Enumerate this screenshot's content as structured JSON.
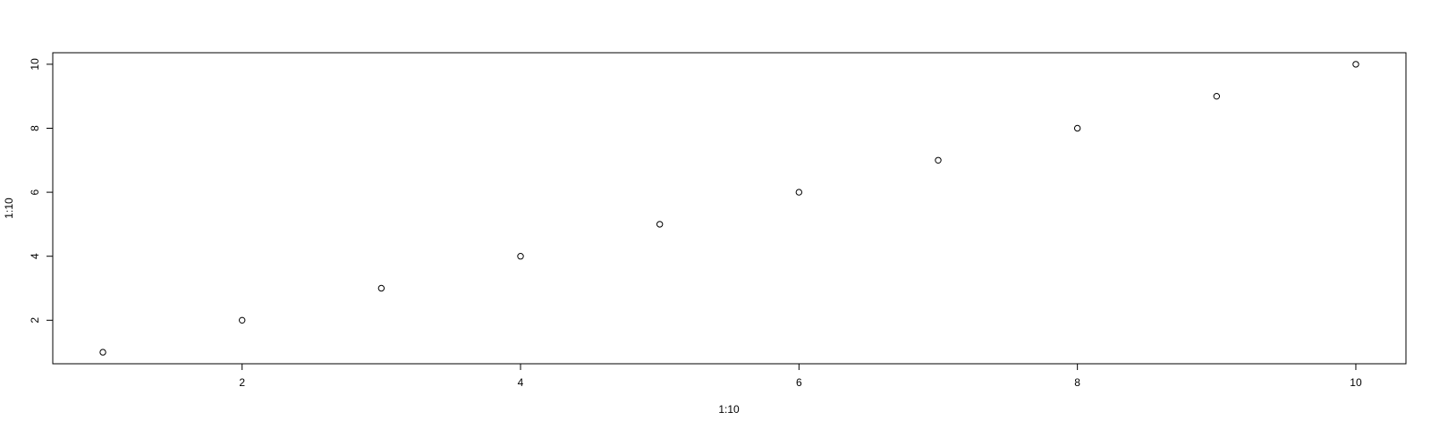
{
  "chart_data": {
    "type": "scatter",
    "x": [
      1,
      2,
      3,
      4,
      5,
      6,
      7,
      8,
      9,
      10
    ],
    "y": [
      1,
      2,
      3,
      4,
      5,
      6,
      7,
      8,
      9,
      10
    ],
    "xlabel": "1:10",
    "ylabel": "1:10",
    "xlim": [
      0.64,
      10.36
    ],
    "ylim": [
      0.64,
      10.36
    ],
    "xticks": [
      2,
      4,
      6,
      8,
      10
    ],
    "yticks": [
      2,
      4,
      6,
      8,
      10
    ],
    "grid": false,
    "marker": "open-circle",
    "colors": {
      "axis": "#000000",
      "marker_stroke": "#000000",
      "marker_fill": "#ffffff"
    }
  }
}
